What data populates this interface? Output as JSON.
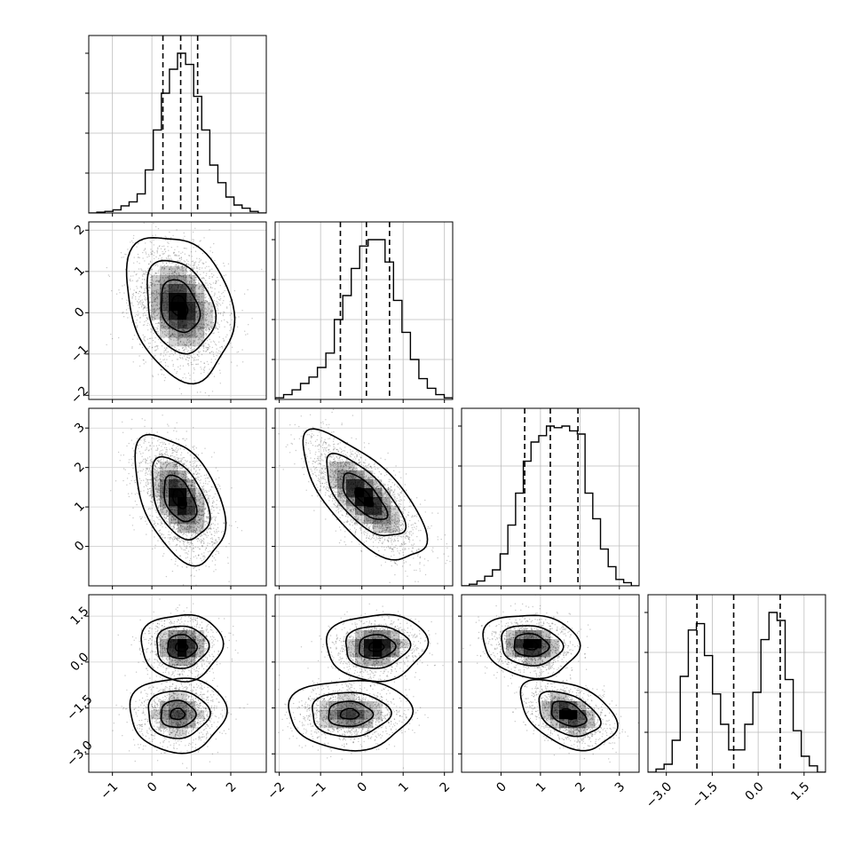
{
  "chart_data": {
    "type": "corner",
    "title": "",
    "parameters": [
      "",
      "",
      "",
      ""
    ],
    "ranges": [
      [
        -1.6,
        2.9
      ],
      [
        -2.1,
        2.2
      ],
      [
        -1.0,
        3.5
      ],
      [
        -3.6,
        2.2
      ]
    ],
    "ticks": [
      {
        "values": [
          -1,
          0,
          1,
          2
        ],
        "labels": [
          "−1",
          "0",
          "1",
          "2"
        ]
      },
      {
        "values": [
          -2,
          -1,
          0,
          1,
          2
        ],
        "labels": [
          "−2",
          "−1",
          "0",
          "1",
          "2"
        ]
      },
      {
        "values": [
          0,
          1,
          2,
          3
        ],
        "labels": [
          "0",
          "1",
          "2",
          "3"
        ]
      },
      {
        "values": [
          -3.0,
          -1.5,
          0.0,
          1.5
        ],
        "labels": [
          "−3.0",
          "−1.5",
          "0.0",
          "1.5"
        ]
      }
    ],
    "quantiles": [
      [
        0.28,
        0.73,
        1.16
      ],
      [
        -0.52,
        0.11,
        0.67
      ],
      [
        0.6,
        1.25,
        1.95
      ],
      [
        -2.0,
        -0.8,
        0.72
      ]
    ],
    "histograms": [
      {
        "bins": [
          -1.6,
          2.9
        ],
        "counts": [
          0.0,
          0.005,
          0.01,
          0.02,
          0.045,
          0.07,
          0.12,
          0.27,
          0.52,
          0.75,
          0.9,
          1.0,
          0.93,
          0.73,
          0.52,
          0.3,
          0.19,
          0.1,
          0.05,
          0.03,
          0.01,
          0.0
        ]
      },
      {
        "bins": [
          -2.1,
          2.2
        ],
        "counts": [
          0.01,
          0.03,
          0.06,
          0.1,
          0.14,
          0.2,
          0.29,
          0.5,
          0.65,
          0.82,
          0.96,
          1.0,
          1.0,
          0.86,
          0.62,
          0.42,
          0.25,
          0.13,
          0.07,
          0.03,
          0.01
        ]
      },
      {
        "bins": [
          -1.0,
          3.5
        ],
        "counts": [
          0.0,
          0.01,
          0.03,
          0.06,
          0.1,
          0.2,
          0.38,
          0.58,
          0.78,
          0.9,
          0.94,
          1.0,
          0.99,
          1.0,
          0.97,
          0.95,
          0.58,
          0.42,
          0.23,
          0.12,
          0.04,
          0.02,
          0.0
        ]
      },
      {
        "bins": [
          -3.6,
          2.2
        ],
        "counts": [
          0.0,
          0.02,
          0.05,
          0.2,
          0.6,
          0.89,
          0.93,
          0.73,
          0.49,
          0.3,
          0.14,
          0.14,
          0.3,
          0.5,
          0.83,
          1.0,
          0.95,
          0.58,
          0.26,
          0.1,
          0.04,
          0.0
        ]
      }
    ],
    "covariance_panels": [
      {
        "row": 1,
        "col": 0,
        "modes": [
          {
            "mean": [
              0.7,
              0.15
            ],
            "sd": [
              0.5,
              0.65
            ],
            "rho": -0.25,
            "weight": 1
          }
        ]
      },
      {
        "row": 2,
        "col": 0,
        "modes": [
          {
            "mean": [
              0.7,
              1.2
            ],
            "sd": [
              0.42,
              0.6
            ],
            "rho": -0.45,
            "weight": 1
          }
        ]
      },
      {
        "row": 2,
        "col": 1,
        "modes": [
          {
            "mean": [
              0.05,
              1.25
            ],
            "sd": [
              0.55,
              0.6
            ],
            "rho": -0.7,
            "weight": 1
          }
        ]
      },
      {
        "row": 3,
        "col": 0,
        "modes": [
          {
            "mean": [
              0.75,
              0.5
            ],
            "sd": [
              0.38,
              0.4
            ],
            "rho": 0,
            "weight": 0.5
          },
          {
            "mean": [
              0.65,
              -1.7
            ],
            "sd": [
              0.45,
              0.45
            ],
            "rho": 0,
            "weight": 0.5
          }
        ]
      },
      {
        "row": 3,
        "col": 1,
        "modes": [
          {
            "mean": [
              0.35,
              0.5
            ],
            "sd": [
              0.45,
              0.4
            ],
            "rho": 0.05,
            "weight": 0.5
          },
          {
            "mean": [
              -0.3,
              -1.7
            ],
            "sd": [
              0.55,
              0.42
            ],
            "rho": 0,
            "weight": 0.5
          }
        ]
      },
      {
        "row": 3,
        "col": 2,
        "modes": [
          {
            "mean": [
              0.75,
              0.55
            ],
            "sd": [
              0.45,
              0.38
            ],
            "rho": -0.1,
            "weight": 0.5
          },
          {
            "mean": [
              1.7,
              -1.7
            ],
            "sd": [
              0.45,
              0.42
            ],
            "rho": -0.4,
            "weight": 0.5
          }
        ]
      }
    ],
    "grid": true
  }
}
